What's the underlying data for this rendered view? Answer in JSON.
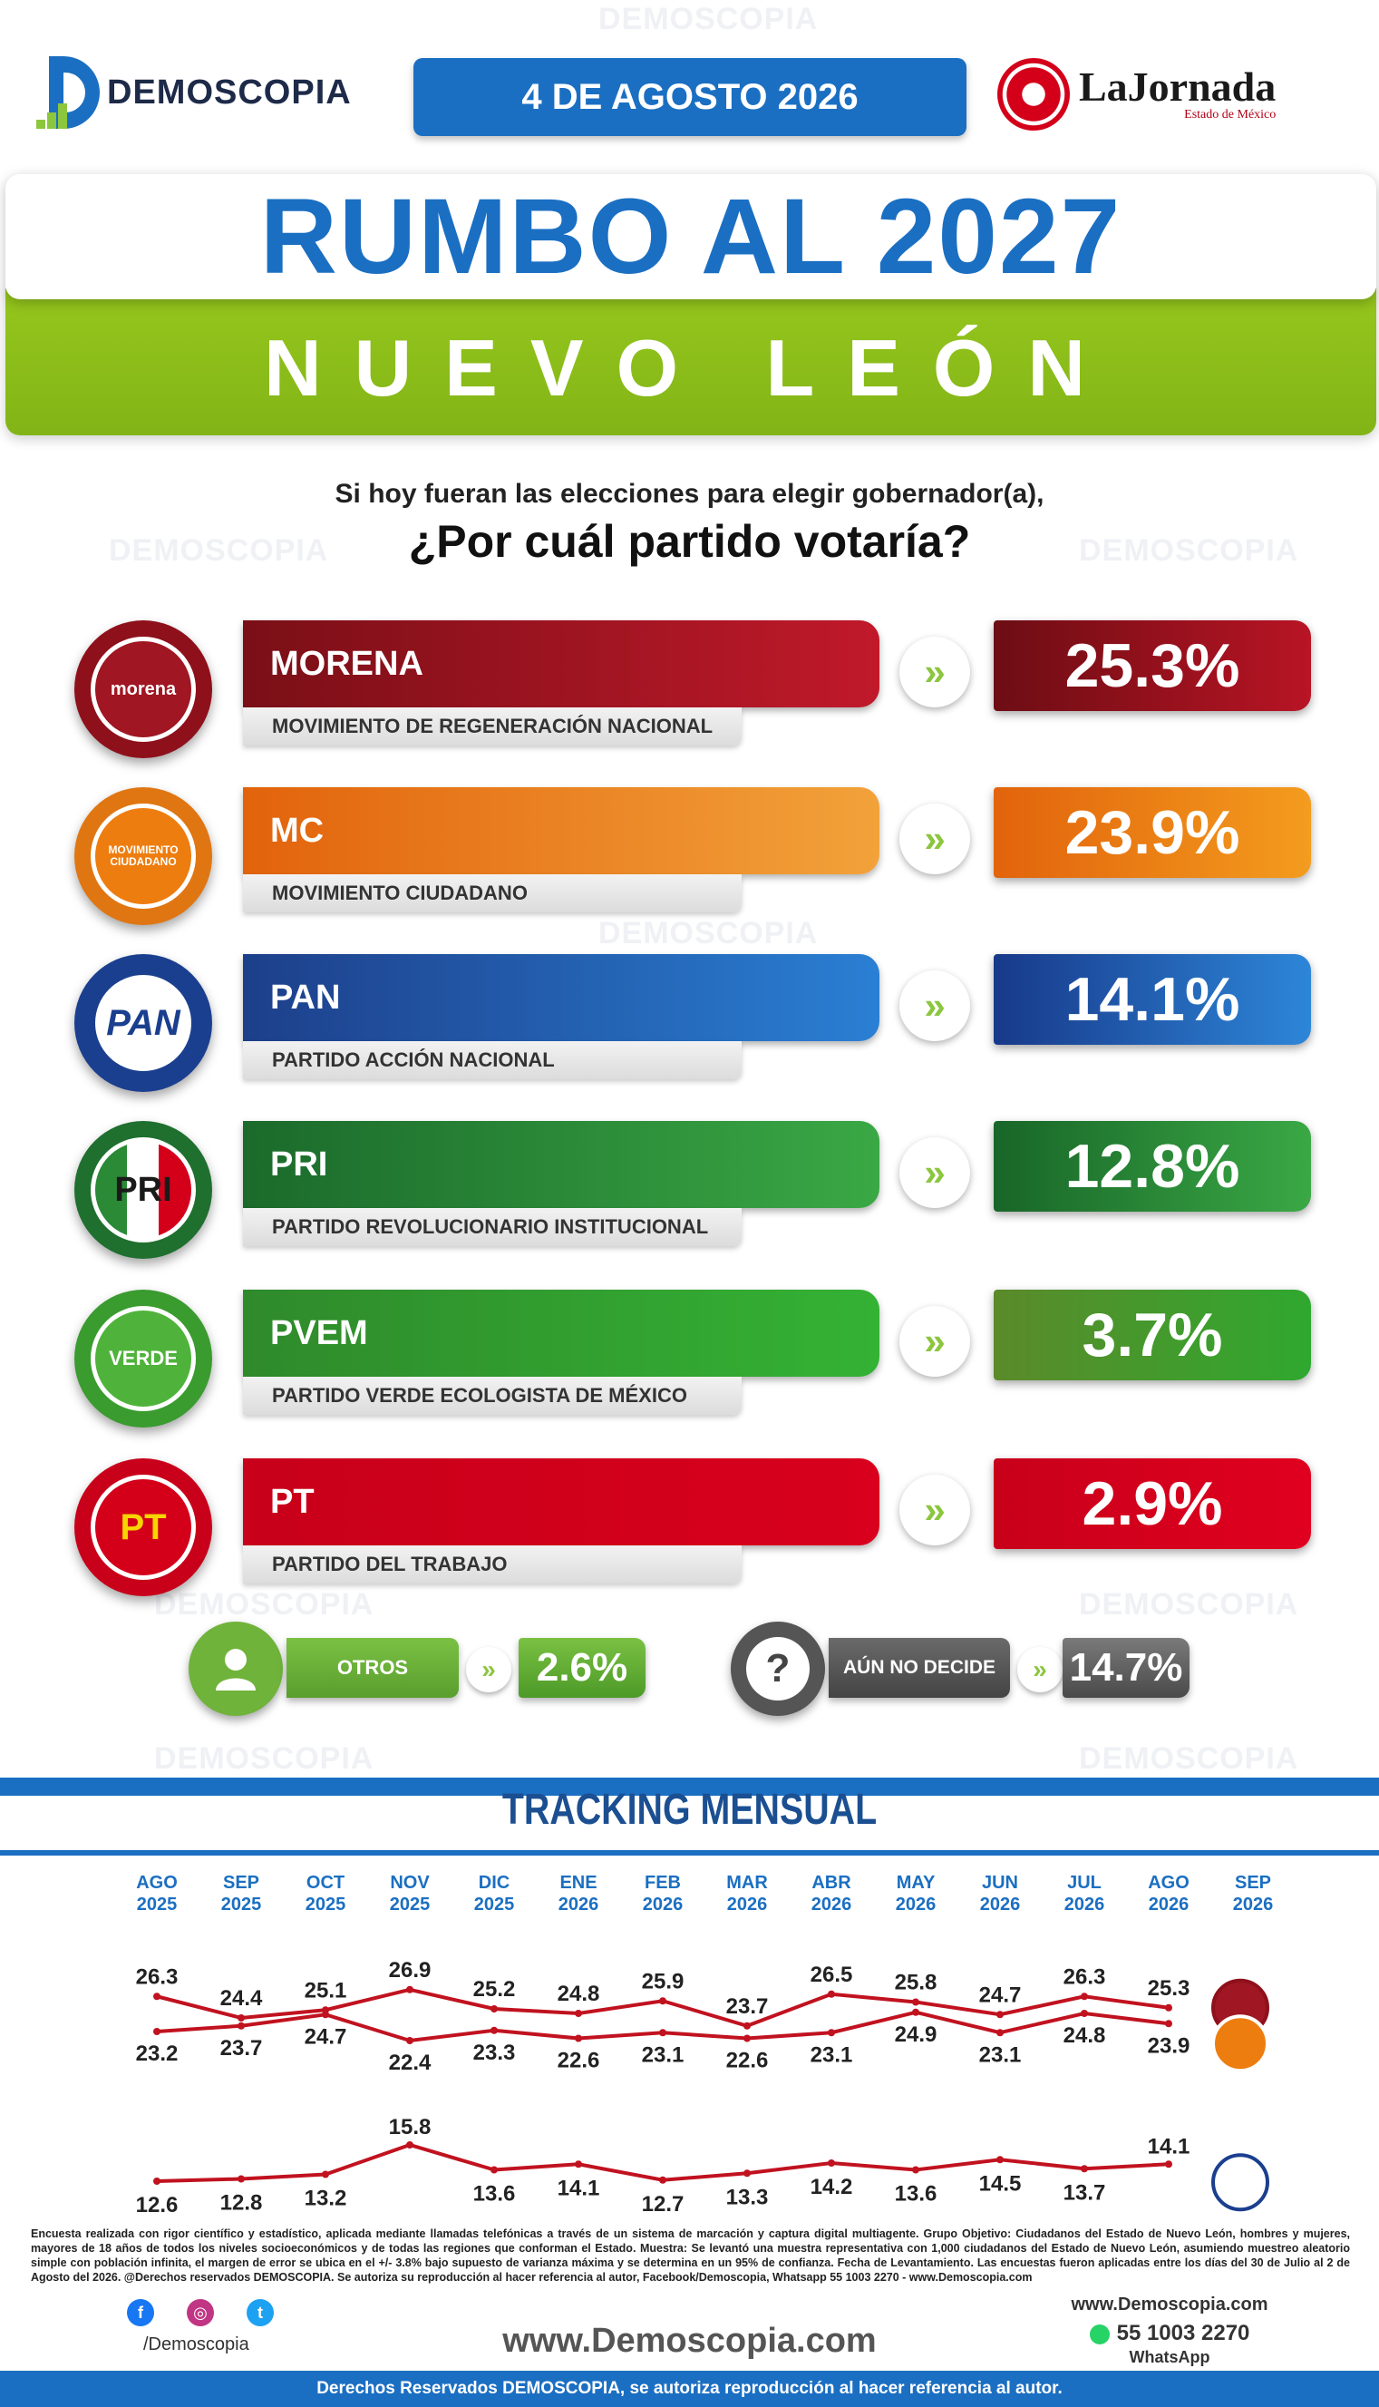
{
  "header": {
    "brand": "DEMOSCOPIA",
    "date": "4 DE AGOSTO 2026",
    "partner": "LaJornada",
    "partner_sub": "Estado de México"
  },
  "title": {
    "line1": "RUMBO AL 2027",
    "line2": "NUEVO LEÓN"
  },
  "question": {
    "line1": "Si hoy fueran las elecciones para elegir gobernador(a),",
    "line2": "¿Por cuál partido votaría?"
  },
  "arrow_glyph": "»",
  "colors": {
    "morena": "#a01622",
    "mc": "#ee7d0f",
    "pan": "#1b62b5",
    "pri": "#2a8a36",
    "pvem": "#3a9b2f",
    "pt": "#d4001a",
    "green_accent": "#8cc63f",
    "brand_blue": "#1b6fc2"
  },
  "parties": [
    {
      "key": "morena",
      "name": "MORENA",
      "full": "MOVIMIENTO DE REGENERACIÓN NACIONAL",
      "pct": "25.3%",
      "emblem": "morena",
      "icon": "morena-logo-icon"
    },
    {
      "key": "mc",
      "name": "MC",
      "full": "MOVIMIENTO CIUDADANO",
      "pct": "23.9%",
      "emblem": "MOVIMIENTO CIUDADANO",
      "icon": "movimiento-ciudadano-logo-icon"
    },
    {
      "key": "pan",
      "name": "PAN",
      "full": "PARTIDO ACCIÓN NACIONAL",
      "pct": "14.1%",
      "emblem": "PAN",
      "icon": "pan-logo-icon"
    },
    {
      "key": "pri",
      "name": "PRI",
      "full": "PARTIDO REVOLUCIONARIO INSTITUCIONAL",
      "pct": "12.8%",
      "emblem": "PRI",
      "icon": "pri-logo-icon"
    },
    {
      "key": "pvem",
      "name": "PVEM",
      "full": "PARTIDO VERDE ECOLOGISTA DE MÉXICO",
      "pct": "3.7%",
      "emblem": "VERDE",
      "icon": "pvem-logo-icon"
    },
    {
      "key": "pt",
      "name": "PT",
      "full": "PARTIDO DEL TRABAJO",
      "pct": "2.9%",
      "emblem": "PT",
      "icon": "pt-logo-icon"
    }
  ],
  "others": {
    "label": "OTROS",
    "pct": "2.6%",
    "icon": "person-icon"
  },
  "undecided": {
    "label": "AÚN NO DECIDE",
    "pct": "14.7%",
    "icon": "question-mark-icon",
    "glyph": "?"
  },
  "tracking": {
    "title": "TRACKING MENSUAL"
  },
  "chart_data": {
    "type": "line",
    "title": "TRACKING MENSUAL",
    "categories": [
      [
        "AGO",
        "2025"
      ],
      [
        "SEP",
        "2025"
      ],
      [
        "OCT",
        "2025"
      ],
      [
        "NOV",
        "2025"
      ],
      [
        "DIC",
        "2025"
      ],
      [
        "ENE",
        "2026"
      ],
      [
        "FEB",
        "2026"
      ],
      [
        "MAR",
        "2026"
      ],
      [
        "ABR",
        "2026"
      ],
      [
        "MAY",
        "2026"
      ],
      [
        "JUN",
        "2026"
      ],
      [
        "JUL",
        "2026"
      ],
      [
        "AGO",
        "2026"
      ],
      [
        "SEP",
        "2026"
      ]
    ],
    "series": [
      {
        "name": "morena",
        "color": "#c1121f",
        "values": [
          26.3,
          24.4,
          25.1,
          26.9,
          25.2,
          24.8,
          25.9,
          23.7,
          26.5,
          25.8,
          24.7,
          26.3,
          25.3,
          null
        ]
      },
      {
        "name": "mc",
        "color": "#c1121f",
        "values": [
          23.2,
          23.7,
          24.7,
          22.4,
          23.3,
          22.6,
          23.1,
          22.6,
          23.1,
          24.9,
          23.1,
          24.8,
          23.9,
          null
        ]
      },
      {
        "name": "pan",
        "color": "#c1121f",
        "values": [
          12.6,
          12.8,
          13.2,
          15.8,
          13.6,
          14.1,
          12.7,
          13.3,
          14.2,
          13.6,
          14.5,
          13.7,
          14.1,
          null
        ]
      }
    ],
    "grid": false,
    "legend": "right"
  },
  "footer": {
    "note": "Encuesta realizada con rigor científico y estadístico, aplicada mediante llamadas telefónicas a través de un sistema de marcación y captura digital multiagente. Grupo Objetivo: Ciudadanos del Estado de Nuevo León, hombres y mujeres, mayores de 18 años de todos los niveles socioeconómicos y de todas las regiones que conforman el Estado. Muestra: Se levantó una muestra representativa con 1,000 ciudadanos del Estado de Nuevo León, asumiendo muestreo aleatorio simple con población infinita, el margen de error se ubica en el +/- 3.8% bajo supuesto de varianza máxima y se determina en un 95% de confianza. Fecha de Levantamiento. Las encuestas fueron aplicadas entre los días del 30 de Julio al 2 de Agosto del 2026. @Derechos reservados DEMOSCOPIA. Se autoriza su reproducción al hacer referencia al autor, Facebook/Demoscopia, Whatsapp 55 1003 2270 - www.Demoscopia.com",
    "handle": "/Demoscopia",
    "site": "www.Demoscopia.com",
    "site_small": "www.Demoscopia.com",
    "phone": "55 1003 2270",
    "whatsapp": "WhatsApp",
    "rights": "Derechos Reservados DEMOSCOPIA, se autoriza reproducción al hacer referencia al autor."
  }
}
